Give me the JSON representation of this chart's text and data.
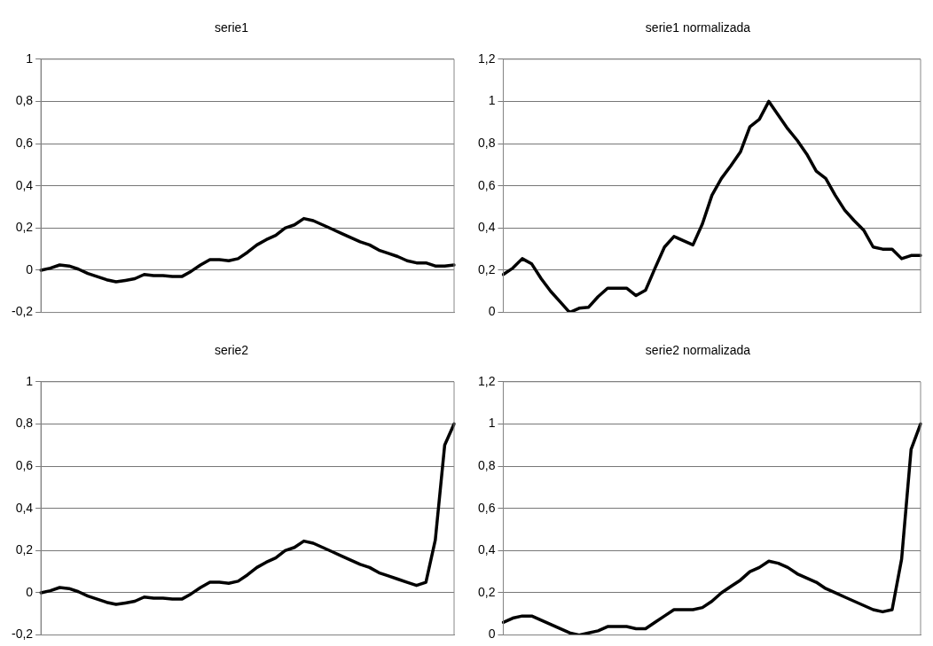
{
  "chart_data": [
    {
      "type": "line",
      "title": "serie1",
      "categories": [
        null,
        null,
        null,
        null,
        null,
        null,
        null,
        null,
        null,
        null,
        null,
        null,
        null,
        null,
        null,
        null,
        null,
        null,
        null,
        null,
        null,
        null,
        null,
        null,
        null,
        null,
        null,
        null,
        null,
        null,
        null,
        null,
        null,
        null,
        null,
        null,
        null,
        null,
        null,
        null,
        null,
        null,
        null,
        null,
        null
      ],
      "series": [
        {
          "color": "#000000",
          "values": [
            0,
            0.01,
            0.025,
            0.02,
            0.005,
            -0.015,
            -0.03,
            -0.045,
            -0.055,
            -0.048,
            -0.04,
            -0.02,
            -0.025,
            -0.025,
            -0.03,
            -0.03,
            -0.005,
            0.025,
            0.05,
            0.05,
            0.045,
            0.055,
            0.085,
            0.12,
            0.145,
            0.165,
            0.2,
            0.215,
            0.245,
            0.235,
            0.215,
            0.195,
            0.175,
            0.155,
            0.135,
            0.12,
            0.095,
            0.08,
            0.065,
            0.045,
            0.035,
            0.035,
            0.02,
            0.02,
            0.025
          ]
        }
      ],
      "ylim": [
        -0.2,
        1
      ],
      "yticks": [
        {
          "value": -0.2,
          "label": "-0,2"
        },
        {
          "value": 0,
          "label": "0"
        },
        {
          "value": 0.2,
          "label": "0,2"
        },
        {
          "value": 0.4,
          "label": "0,4"
        },
        {
          "value": 0.6,
          "label": "0,6"
        },
        {
          "value": 0.8,
          "label": "0,8"
        },
        {
          "value": 1,
          "label": "1"
        }
      ],
      "grid": "y",
      "marker": "none",
      "tick_labels": "y"
    },
    {
      "type": "line",
      "title": "serie1 normalizada",
      "categories": [
        null,
        null,
        null,
        null,
        null,
        null,
        null,
        null,
        null,
        null,
        null,
        null,
        null,
        null,
        null,
        null,
        null,
        null,
        null,
        null,
        null,
        null,
        null,
        null,
        null,
        null,
        null,
        null,
        null,
        null,
        null,
        null,
        null,
        null,
        null,
        null,
        null,
        null,
        null,
        null,
        null,
        null,
        null,
        null,
        null
      ],
      "series": [
        {
          "color": "#000000",
          "values": [
            0.18,
            0.21,
            0.255,
            0.23,
            0.16,
            0.1,
            0.05,
            0.0,
            0.02,
            0.025,
            0.075,
            0.115,
            0.115,
            0.115,
            0.08,
            0.105,
            0.21,
            0.31,
            0.36,
            0.34,
            0.32,
            0.42,
            0.555,
            0.635,
            0.695,
            0.76,
            0.88,
            0.915,
            1,
            0.935,
            0.87,
            0.815,
            0.75,
            0.67,
            0.635,
            0.555,
            0.485,
            0.435,
            0.39,
            0.31,
            0.3,
            0.3,
            0.255,
            0.27,
            0.27
          ]
        }
      ],
      "ylim": [
        0,
        1.2
      ],
      "yticks": [
        {
          "value": 0,
          "label": "0"
        },
        {
          "value": 0.2,
          "label": "0,2"
        },
        {
          "value": 0.4,
          "label": "0,4"
        },
        {
          "value": 0.6,
          "label": "0,6"
        },
        {
          "value": 0.8,
          "label": "0,8"
        },
        {
          "value": 1,
          "label": "1"
        },
        {
          "value": 1.2,
          "label": "1,2"
        }
      ],
      "grid": "y",
      "marker": "none",
      "tick_labels": "y"
    },
    {
      "type": "line",
      "title": "serie2",
      "categories": [
        null,
        null,
        null,
        null,
        null,
        null,
        null,
        null,
        null,
        null,
        null,
        null,
        null,
        null,
        null,
        null,
        null,
        null,
        null,
        null,
        null,
        null,
        null,
        null,
        null,
        null,
        null,
        null,
        null,
        null,
        null,
        null,
        null,
        null,
        null,
        null,
        null,
        null,
        null,
        null,
        null,
        null,
        null,
        null,
        null
      ],
      "series": [
        {
          "color": "#000000",
          "values": [
            0,
            0.01,
            0.025,
            0.02,
            0.005,
            -0.015,
            -0.03,
            -0.045,
            -0.055,
            -0.048,
            -0.04,
            -0.02,
            -0.025,
            -0.025,
            -0.03,
            -0.03,
            -0.005,
            0.025,
            0.05,
            0.05,
            0.045,
            0.055,
            0.085,
            0.12,
            0.145,
            0.165,
            0.2,
            0.215,
            0.245,
            0.235,
            0.215,
            0.195,
            0.175,
            0.155,
            0.135,
            0.12,
            0.095,
            0.08,
            0.065,
            0.05,
            0.035,
            0.05,
            0.25,
            0.7,
            0.8
          ]
        }
      ],
      "ylim": [
        -0.2,
        1
      ],
      "yticks": [
        {
          "value": -0.2,
          "label": "-0,2"
        },
        {
          "value": 0,
          "label": "0"
        },
        {
          "value": 0.2,
          "label": "0,2"
        },
        {
          "value": 0.4,
          "label": "0,4"
        },
        {
          "value": 0.6,
          "label": "0,6"
        },
        {
          "value": 0.8,
          "label": "0,8"
        },
        {
          "value": 1,
          "label": "1"
        }
      ],
      "grid": "y",
      "marker": "none",
      "tick_labels": "y"
    },
    {
      "type": "line",
      "title": "serie2 normalizada",
      "categories": [
        null,
        null,
        null,
        null,
        null,
        null,
        null,
        null,
        null,
        null,
        null,
        null,
        null,
        null,
        null,
        null,
        null,
        null,
        null,
        null,
        null,
        null,
        null,
        null,
        null,
        null,
        null,
        null,
        null,
        null,
        null,
        null,
        null,
        null,
        null,
        null,
        null,
        null,
        null,
        null,
        null,
        null,
        null,
        null,
        null
      ],
      "series": [
        {
          "color": "#000000",
          "values": [
            0.06,
            0.08,
            0.09,
            0.09,
            0.07,
            0.05,
            0.03,
            0.01,
            0,
            0.01,
            0.02,
            0.04,
            0.04,
            0.04,
            0.03,
            0.03,
            0.06,
            0.09,
            0.12,
            0.12,
            0.12,
            0.13,
            0.16,
            0.2,
            0.23,
            0.26,
            0.3,
            0.32,
            0.35,
            0.34,
            0.32,
            0.29,
            0.27,
            0.25,
            0.22,
            0.2,
            0.18,
            0.16,
            0.14,
            0.12,
            0.11,
            0.12,
            0.36,
            0.88,
            1
          ]
        }
      ],
      "ylim": [
        0,
        1.2
      ],
      "yticks": [
        {
          "value": 0,
          "label": "0"
        },
        {
          "value": 0.2,
          "label": "0,2"
        },
        {
          "value": 0.4,
          "label": "0,4"
        },
        {
          "value": 0.6,
          "label": "0,6"
        },
        {
          "value": 0.8,
          "label": "0,8"
        },
        {
          "value": 1,
          "label": "1"
        },
        {
          "value": 1.2,
          "label": "1,2"
        }
      ],
      "grid": "y",
      "marker": "none",
      "tick_labels": "y"
    }
  ]
}
